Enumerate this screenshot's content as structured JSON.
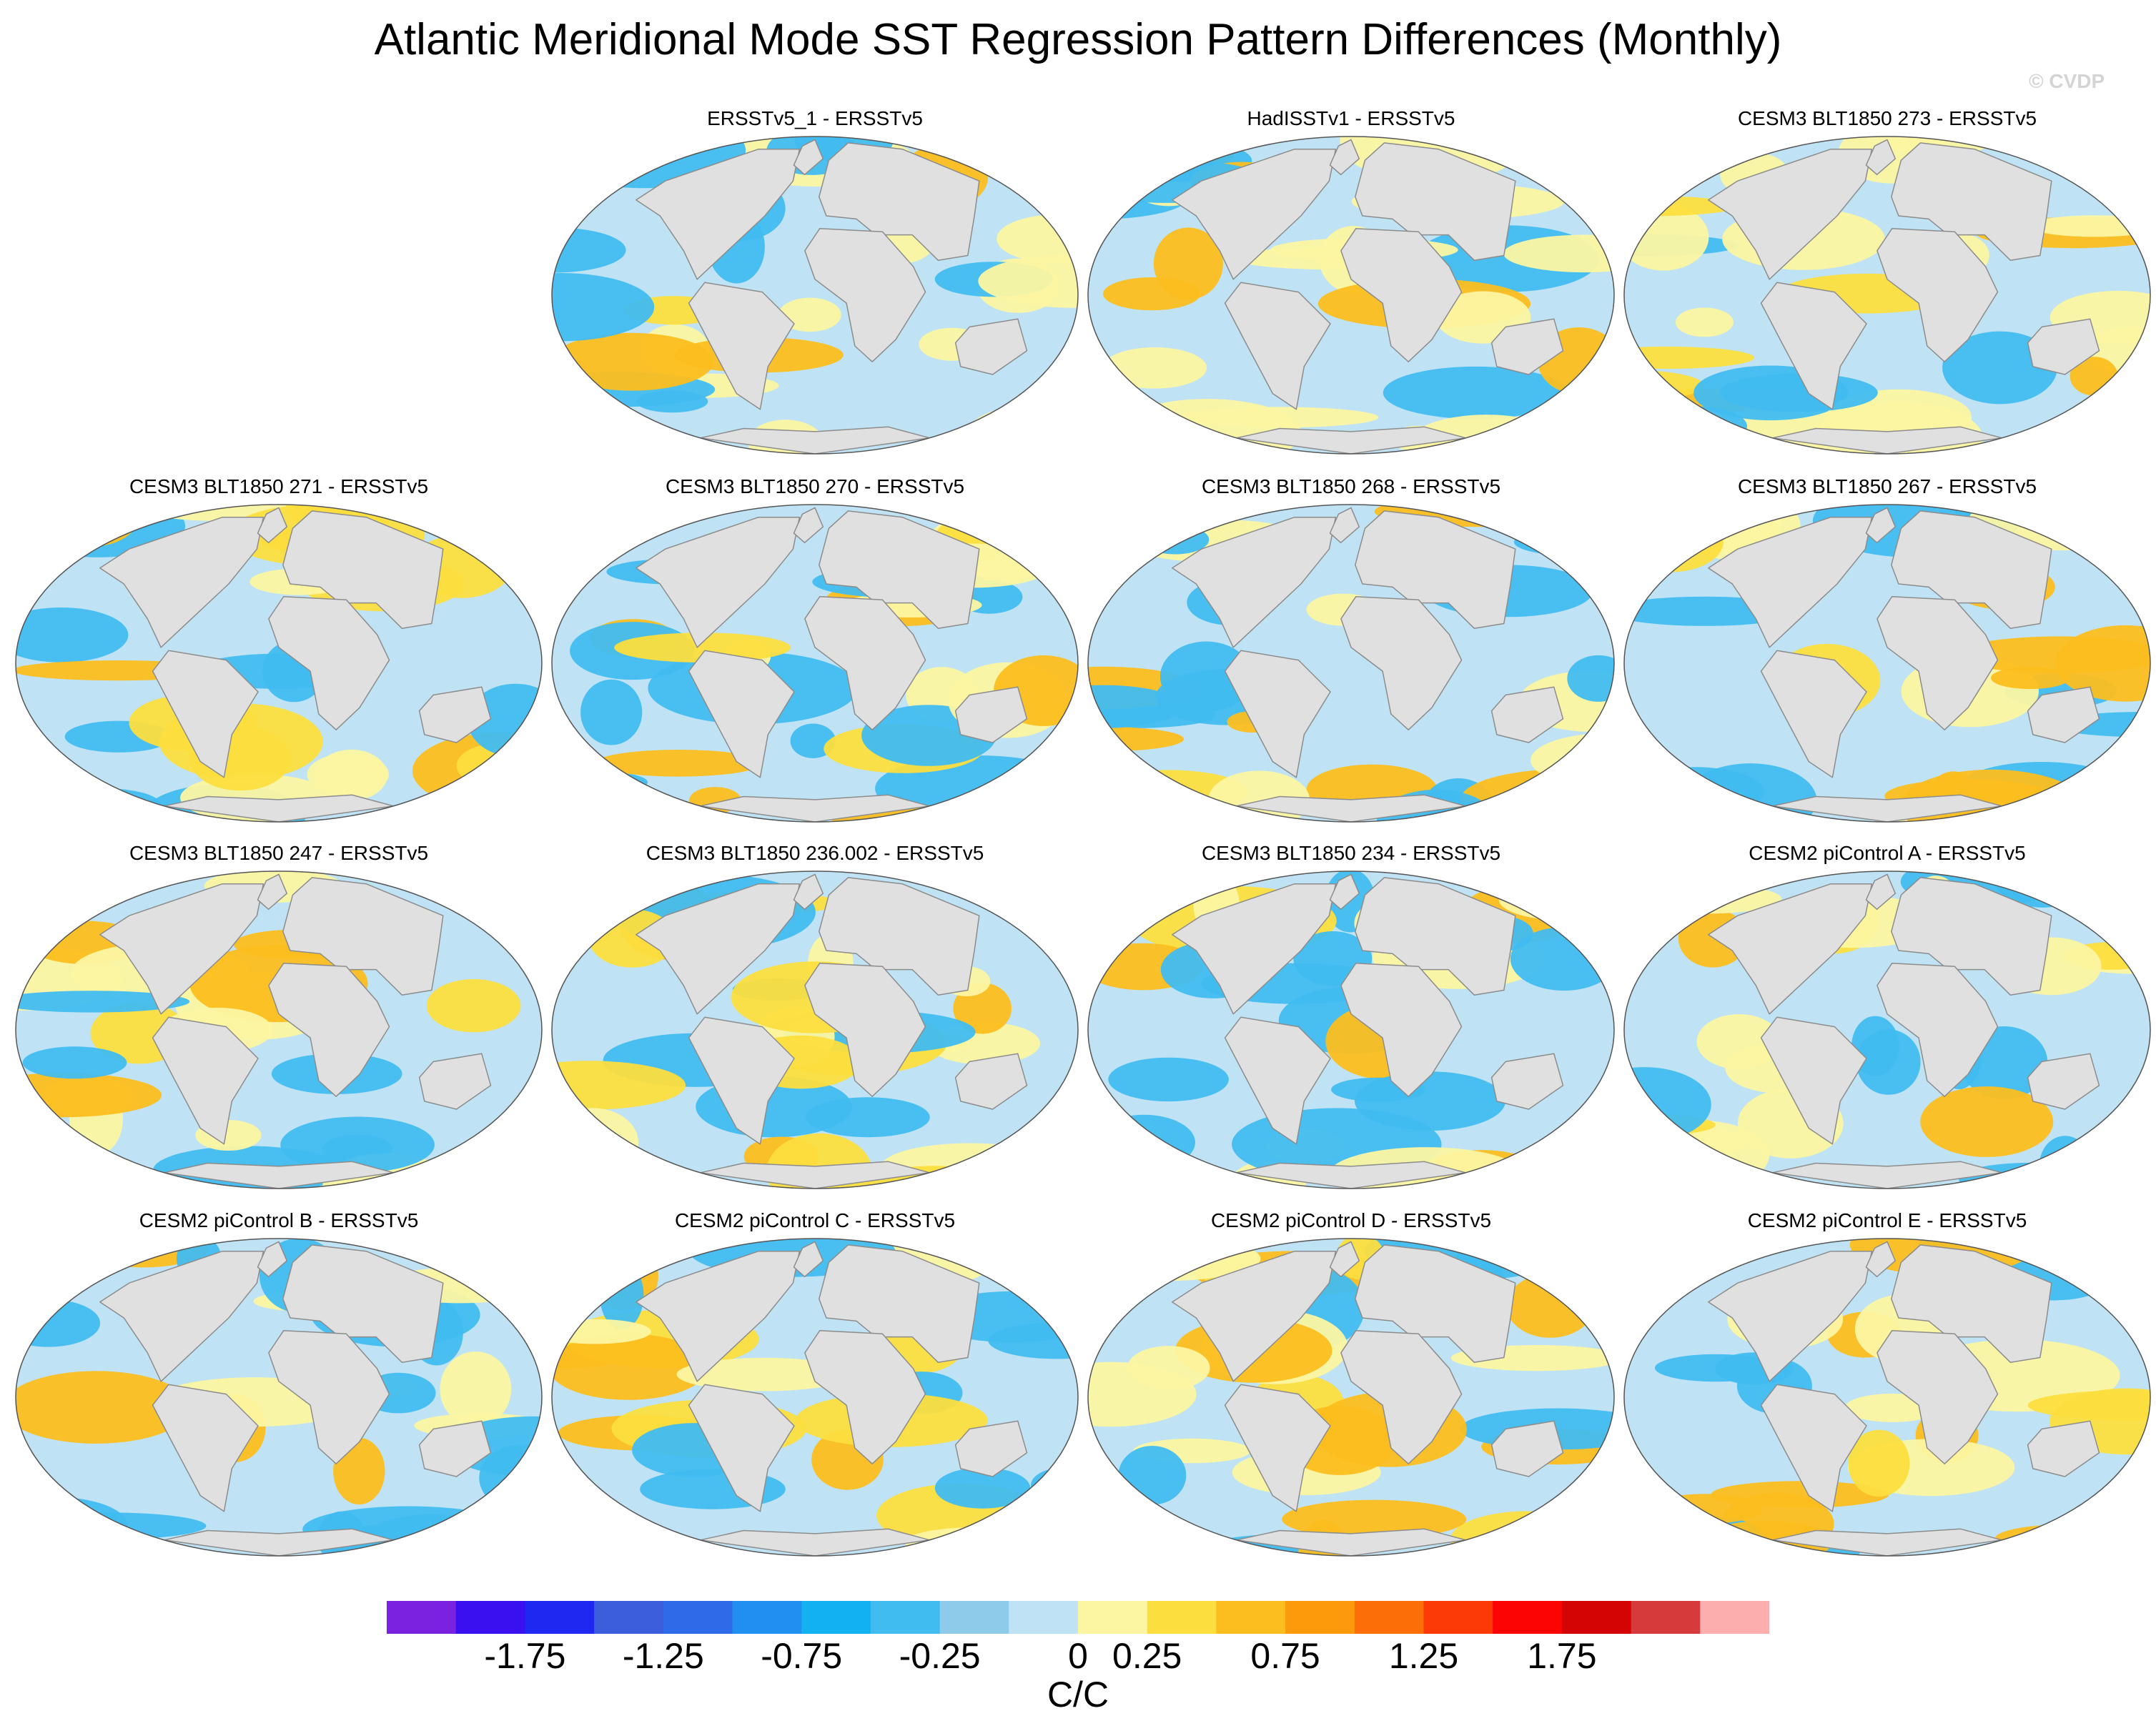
{
  "title": "Atlantic Meridional Mode SST Regression Pattern Differences (Monthly)",
  "watermark": "© CVDP",
  "panels": [
    {
      "title": "ERSSTv5_1 - ERSSTv5"
    },
    {
      "title": "HadISSTv1 - ERSSTv5"
    },
    {
      "title": "CESM3 BLT1850 273 - ERSSTv5"
    },
    {
      "title": "CESM3 BLT1850 271 - ERSSTv5"
    },
    {
      "title": "CESM3 BLT1850 270 - ERSSTv5"
    },
    {
      "title": "CESM3 BLT1850 268 - ERSSTv5"
    },
    {
      "title": "CESM3 BLT1850 267 - ERSSTv5"
    },
    {
      "title": "CESM3 BLT1850 247 - ERSSTv5"
    },
    {
      "title": "CESM3 BLT1850 236.002 - ERSSTv5"
    },
    {
      "title": "CESM3 BLT1850 234 - ERSSTv5"
    },
    {
      "title": "CESM2 piControl A - ERSSTv5"
    },
    {
      "title": "CESM2 piControl B - ERSSTv5"
    },
    {
      "title": "CESM2 piControl C - ERSSTv5"
    },
    {
      "title": "CESM2 piControl D - ERSSTv5"
    },
    {
      "title": "CESM2 piControl E - ERSSTv5"
    }
  ],
  "colorbar": {
    "colors": [
      "#7b22e0",
      "#3a10f0",
      "#1e28f0",
      "#3c5ddc",
      "#2e6be8",
      "#208ff0",
      "#12b2f2",
      "#41bcf0",
      "#8ecbea",
      "#bfe3f4",
      "#fcf6a2",
      "#fcde3e",
      "#fcbe1e",
      "#fc9a0c",
      "#fc6e08",
      "#fc3a06",
      "#fc0404",
      "#d40404",
      "#d63a3a",
      "#fcaeae"
    ],
    "tick_labels": [
      "-1.75",
      "-1.25",
      "-0.75",
      "-0.25",
      "0",
      "0.25",
      "0.75",
      "1.25",
      "1.75"
    ],
    "units": "C/C"
  },
  "colors": {
    "land": "#e0e0e0",
    "coast": "#8c8c8c",
    "blue_dark": "#41bcf0",
    "blue_light": "#bfe3f4",
    "yellow_light": "#fcf6a2",
    "yellow": "#fcde3e",
    "orange": "#fcbe1e"
  }
}
